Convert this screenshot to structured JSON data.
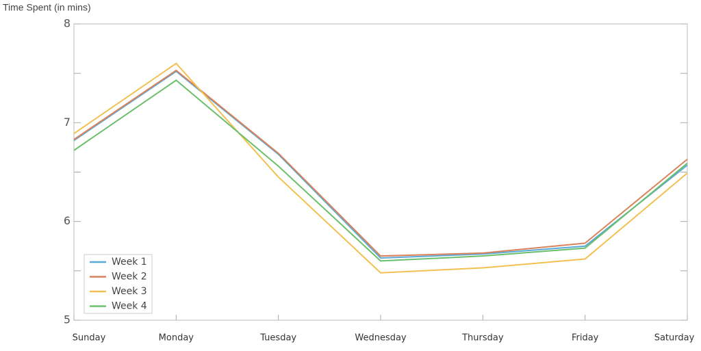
{
  "chart_data": {
    "type": "line",
    "y_label": "Time Spent (in mins)",
    "categories": [
      "Sunday",
      "Monday",
      "Tuesday",
      "Wednesday",
      "Thursday",
      "Friday",
      "Saturday"
    ],
    "series": [
      {
        "name": "Week 1",
        "color": "#5aa9d6",
        "values": [
          6.82,
          7.52,
          6.68,
          5.63,
          5.67,
          5.75,
          6.57
        ]
      },
      {
        "name": "Week 2",
        "color": "#d9825b",
        "values": [
          6.83,
          7.53,
          6.69,
          5.65,
          5.68,
          5.78,
          6.63
        ]
      },
      {
        "name": "Week 3",
        "color": "#f2c050",
        "values": [
          6.89,
          7.6,
          6.45,
          5.48,
          5.53,
          5.62,
          6.49
        ]
      },
      {
        "name": "Week 4",
        "color": "#6bbf6b",
        "values": [
          6.72,
          7.43,
          6.56,
          5.6,
          5.65,
          5.73,
          6.59
        ]
      }
    ],
    "ylim": [
      5,
      8
    ],
    "yticks": [
      5,
      6,
      7,
      8
    ],
    "minor_yticks": [
      5.5,
      6.5,
      7.5
    ],
    "grid": false,
    "legend": "lower left"
  }
}
